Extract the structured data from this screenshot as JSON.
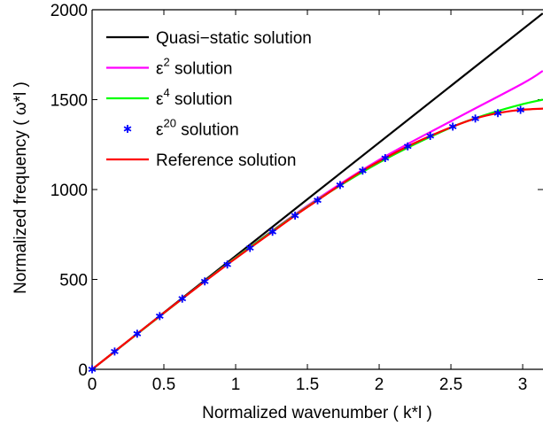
{
  "chart_data": {
    "type": "line",
    "xlabel": "Normalized wavenumber ( k*l )",
    "ylabel": "Normalized frequency ( ω*l )",
    "xlim": [
      0,
      3.1416
    ],
    "ylim": [
      0,
      2000
    ],
    "xticks": [
      0,
      0.5,
      1,
      1.5,
      2,
      2.5,
      3
    ],
    "xtick_labels": [
      "0",
      "0.5",
      "1",
      "1.5",
      "2",
      "2.5",
      "3"
    ],
    "yticks": [
      0,
      500,
      1000,
      1500,
      2000
    ],
    "ytick_labels": [
      "0",
      "500",
      "1000",
      "1500",
      "2000"
    ],
    "grid": false,
    "legend_position": "top-left",
    "series": [
      {
        "name": "Quasi−static solution",
        "legend_base": "Quasi−static solution",
        "legend_sup": "",
        "legend_suffix": "",
        "color": "#000000",
        "style": "line",
        "x": [
          0,
          3.14
        ],
        "y": [
          0,
          1980
        ]
      },
      {
        "name": "ε² solution",
        "legend_base": "ε",
        "legend_sup": "2",
        "legend_suffix": " solution",
        "color": "#ff00ff",
        "style": "line",
        "x": [
          0,
          0.5,
          1.0,
          1.5,
          2.0,
          2.5,
          3.0,
          3.14
        ],
        "y": [
          0,
          313,
          621,
          910,
          1165,
          1380,
          1590,
          1660
        ]
      },
      {
        "name": "ε⁴ solution",
        "legend_base": "ε",
        "legend_sup": "4",
        "legend_suffix": " solution",
        "color": "#00ff00",
        "style": "line",
        "x": [
          0,
          0.5,
          1.0,
          1.5,
          2.0,
          2.5,
          2.8,
          3.0,
          3.14
        ],
        "y": [
          0,
          313,
          620,
          905,
          1150,
          1345,
          1430,
          1475,
          1500
        ]
      },
      {
        "name": "ε²⁰ solution",
        "legend_base": "ε",
        "legend_sup": "20",
        "legend_suffix": " solution",
        "color": "#0000ff",
        "style": "marker",
        "x": [
          0,
          0.157,
          0.314,
          0.471,
          0.628,
          0.785,
          0.942,
          1.1,
          1.257,
          1.414,
          1.571,
          1.728,
          1.885,
          2.042,
          2.199,
          2.356,
          2.513,
          2.67,
          2.827,
          2.985
        ],
        "y": [
          0,
          99,
          198,
          296,
          393,
          489,
          583,
          675,
          765,
          855,
          940,
          1025,
          1105,
          1175,
          1240,
          1298,
          1350,
          1395,
          1425,
          1443
        ]
      },
      {
        "name": "Reference solution",
        "legend_base": "Reference solution",
        "legend_sup": "",
        "legend_suffix": "",
        "color": "#ff0000",
        "style": "line",
        "x": [
          0,
          0.157,
          0.314,
          0.471,
          0.628,
          0.785,
          0.942,
          1.1,
          1.257,
          1.414,
          1.571,
          1.728,
          1.885,
          2.042,
          2.199,
          2.356,
          2.513,
          2.67,
          2.827,
          2.985,
          3.1416
        ],
        "y": [
          0,
          99,
          198,
          296,
          393,
          489,
          583,
          675,
          765,
          855,
          940,
          1025,
          1105,
          1175,
          1240,
          1298,
          1350,
          1395,
          1425,
          1443,
          1450
        ]
      }
    ]
  }
}
